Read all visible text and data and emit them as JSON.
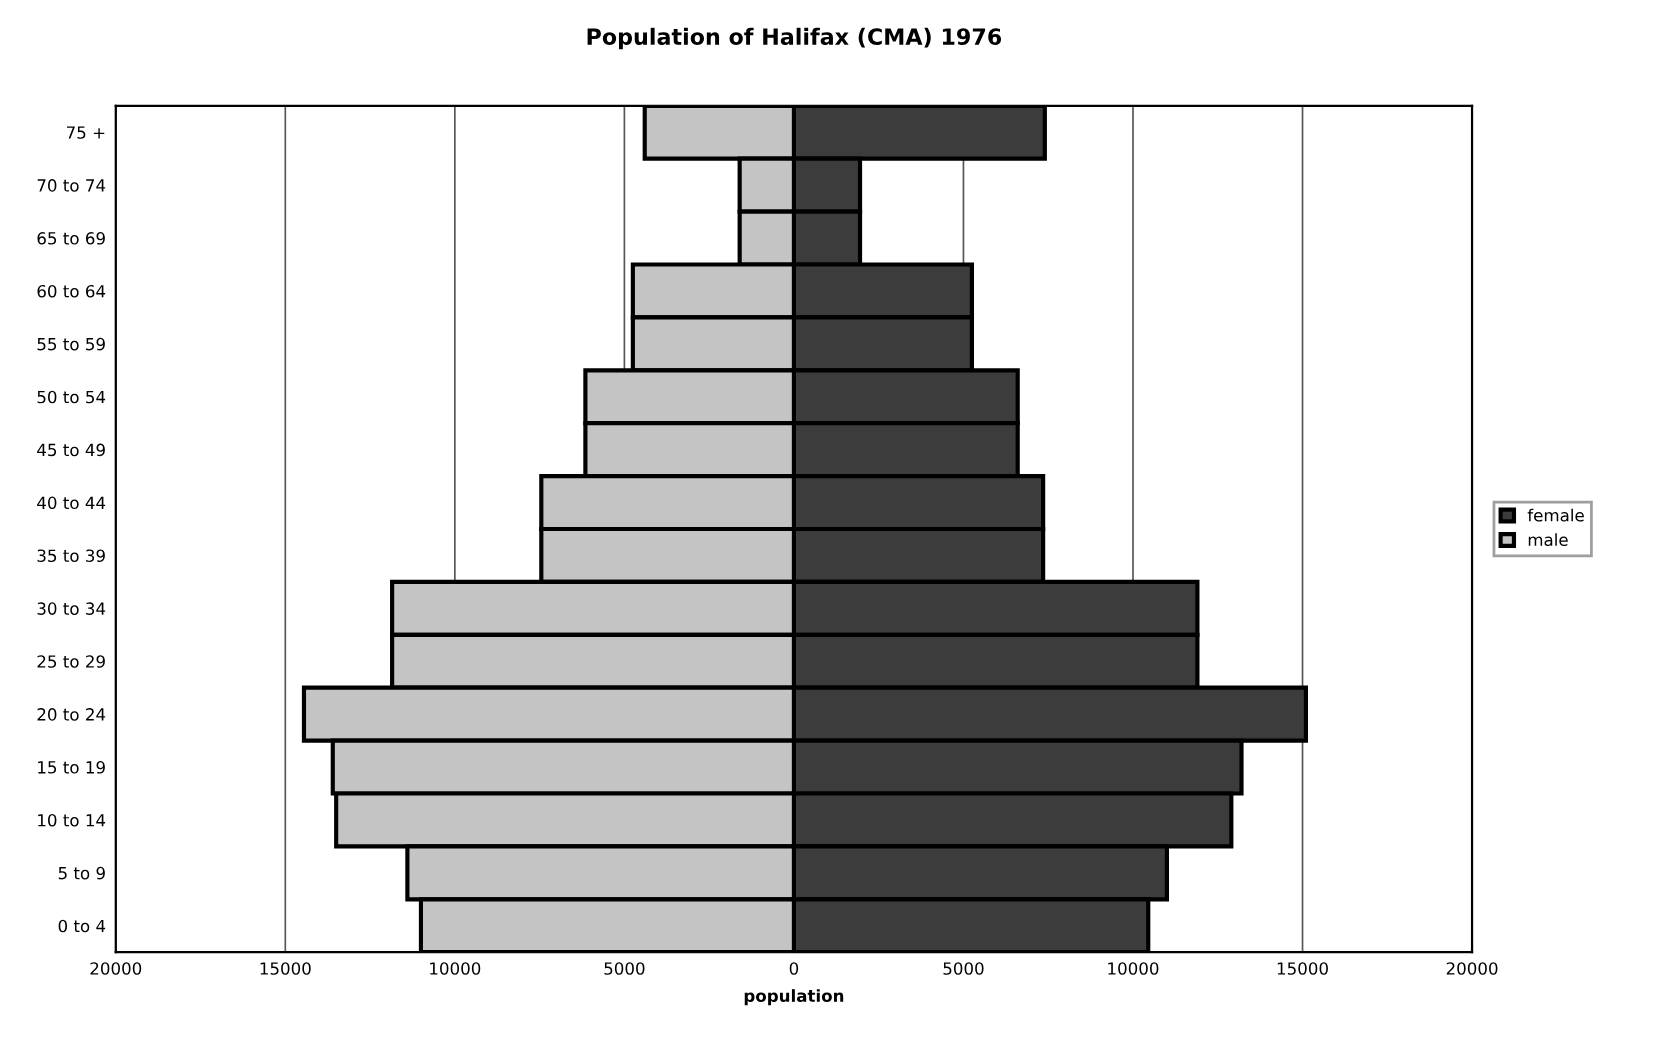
{
  "chart_data": {
    "type": "bar",
    "orientation": "horizontal",
    "title": "Population of Halifax (CMA) 1976",
    "xlabel": "population",
    "categories": [
      "75 +",
      "70 to 74",
      "65 to 69",
      "60 to 64",
      "55 to 59",
      "50 to 54",
      "45 to 49",
      "40 to 44",
      "35 to 39",
      "30 to 34",
      "25 to 29",
      "20 to 24",
      "15 to 19",
      "10 to 14",
      "5 to 9",
      "0 to 4"
    ],
    "series": [
      {
        "name": "female",
        "color": "#3c3c3c",
        "values": [
          7400,
          1950,
          1950,
          5250,
          5250,
          6600,
          6600,
          7350,
          7350,
          11900,
          11900,
          15100,
          13200,
          12900,
          11000,
          10450
        ]
      },
      {
        "name": "male",
        "color": "#c4c4c4",
        "values": [
          -4400,
          -1600,
          -1600,
          -4750,
          -4750,
          -6150,
          -6150,
          -7450,
          -7450,
          -11850,
          -11850,
          -14450,
          -13600,
          -13500,
          -11400,
          -11000
        ]
      }
    ],
    "xlim": [
      -20000,
      20000
    ],
    "xticks": [
      {
        "value": -20000,
        "label": "20000"
      },
      {
        "value": -15000,
        "label": "15000"
      },
      {
        "value": -10000,
        "label": "10000"
      },
      {
        "value": -5000,
        "label": "5000"
      },
      0,
      5000,
      10000,
      15000,
      20000
    ],
    "stacked": true,
    "grid": "x",
    "legend": "right"
  }
}
